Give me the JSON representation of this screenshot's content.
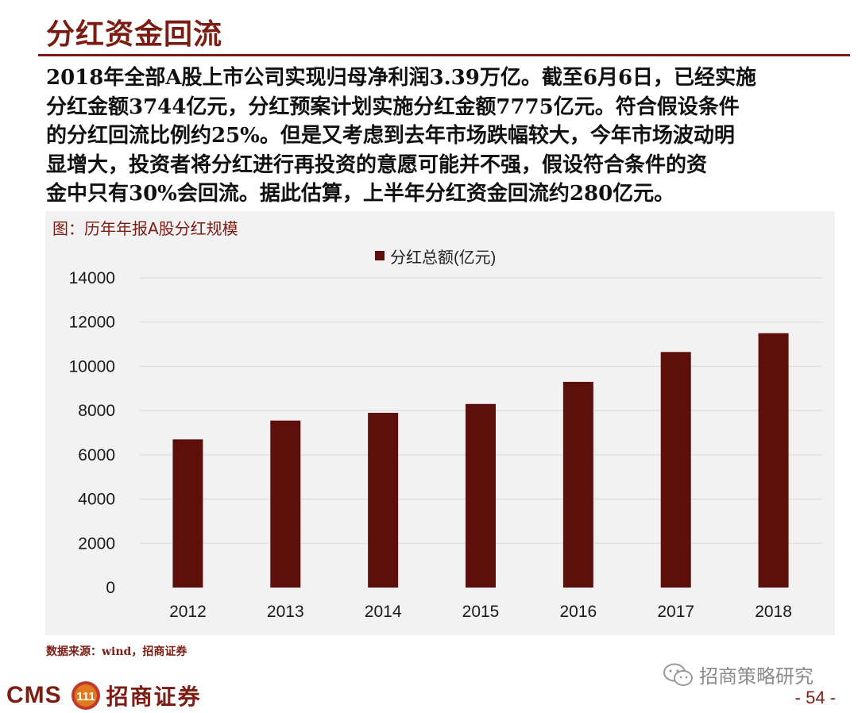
{
  "page": {
    "title": "分红资金回流",
    "body_lines": [
      "2018年全部A股上市公司实现归母净利润3.39万亿。截至6月6日，已经实施",
      "分红金额3744亿元，分红预案计划实施分红金额7775亿元。符合假设条件",
      "的分红回流比例约25%。但是又考虑到去年市场跌幅较大，今年市场波动明",
      "显增大，投资者将分红进行再投资的意愿可能并不强，假设符合条件的资",
      "金中只有30%会回流。据此估算，上半年分红资金回流约280亿元。"
    ],
    "chart_caption": "图：历年年报A股分红规模",
    "source": "数据来源：wind，招商证券",
    "brand_cms": "CMS",
    "brand_logo_text": "111",
    "brand_cn": "招商证券",
    "watermark": "招商策略研究",
    "page_number": "- 54 -"
  },
  "colors": {
    "accent": "#7b1d13",
    "bar": "#5c0f0b",
    "panel": "#f2f2f2",
    "grid": "#d9d9d9"
  },
  "icons": {
    "wechat": "wechat-icon",
    "brand_logo": "cms-logo-icon"
  },
  "chart_data": {
    "type": "bar",
    "categories": [
      "2012",
      "2013",
      "2014",
      "2015",
      "2016",
      "2017",
      "2018"
    ],
    "series": [
      {
        "name": "分红总额(亿元)",
        "values": [
          6700,
          7550,
          7900,
          8300,
          9300,
          10650,
          11500
        ]
      }
    ],
    "ylim": [
      0,
      14000
    ],
    "yticks": [
      "0",
      "2000",
      "4000",
      "6000",
      "8000",
      "10000",
      "12000",
      "14000"
    ],
    "grid": true,
    "legend_position": "top-center"
  }
}
